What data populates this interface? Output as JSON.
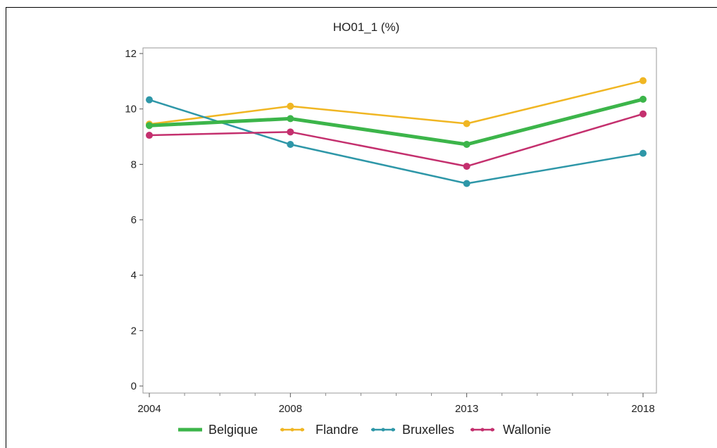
{
  "chart_data": {
    "type": "line",
    "title": "HO01_1 (%)",
    "xlabel": "",
    "ylabel": "",
    "x": [
      2004,
      2008,
      2013,
      2018
    ],
    "x_ticks": [
      2004,
      2008,
      2013,
      2018
    ],
    "x_minor_ticks": [
      2005,
      2006,
      2007,
      2009,
      2010,
      2011,
      2012,
      2014,
      2015,
      2016,
      2017
    ],
    "xlim": [
      2004,
      2018
    ],
    "ylim": [
      0,
      12
    ],
    "y_ticks": [
      0,
      2,
      4,
      6,
      8,
      10,
      12
    ],
    "grid": false,
    "legend_position": "bottom",
    "series": [
      {
        "name": "Belgique",
        "color": "#3cb54a",
        "values": [
          9.4,
          9.65,
          8.72,
          10.35
        ],
        "bold": true
      },
      {
        "name": "Flandre",
        "color": "#f0b623",
        "values": [
          9.45,
          10.1,
          9.47,
          11.02
        ]
      },
      {
        "name": "Bruxelles",
        "color": "#2e97a8",
        "values": [
          10.33,
          8.72,
          7.31,
          8.4
        ]
      },
      {
        "name": "Wallonie",
        "color": "#c4306e",
        "values": [
          9.05,
          9.17,
          7.93,
          9.82
        ]
      }
    ]
  }
}
